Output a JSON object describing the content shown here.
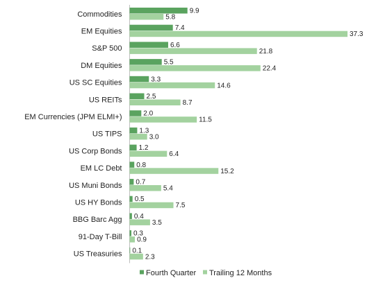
{
  "chart_data": {
    "type": "bar",
    "orientation": "horizontal",
    "categories": [
      "Commodities",
      "EM Equities",
      "S&P 500",
      "DM Equities",
      "US SC Equities",
      "US REITs",
      "EM Currencies (JPM ELMI+)",
      "US TIPS",
      "US Corp Bonds",
      "EM LC Debt",
      "US Muni Bonds",
      "US HY Bonds",
      "BBG Barc Agg",
      "91-Day T-Bill",
      "US Treasuries"
    ],
    "series": [
      {
        "name": "Fourth Quarter",
        "color": "#5aa35f",
        "values": [
          9.9,
          7.4,
          6.6,
          5.5,
          3.3,
          2.5,
          2.0,
          1.3,
          1.2,
          0.8,
          0.7,
          0.5,
          0.4,
          0.3,
          0.1
        ],
        "labels": [
          "9.9",
          "7.4",
          "6.6",
          "5.5",
          "3.3",
          "2.5",
          "2.0",
          "1.3",
          "1.2",
          "0.8",
          "0.7",
          "0.5",
          "0.4",
          "0.3",
          "0.1"
        ]
      },
      {
        "name": "Trailing 12 Months",
        "color": "#a3d29f",
        "values": [
          5.8,
          37.3,
          21.8,
          22.4,
          14.6,
          8.7,
          11.5,
          3.0,
          6.4,
          15.2,
          5.4,
          7.5,
          3.5,
          0.9,
          2.3
        ],
        "labels": [
          "5.8",
          "37.3",
          "21.8",
          "22.4",
          "14.6",
          "8.7",
          "11.5",
          "3.0",
          "6.4",
          "15.2",
          "5.4",
          "7.5",
          "3.5",
          "0.9",
          "2.3"
        ]
      }
    ],
    "xlim": [
      0,
      38
    ],
    "grid": false,
    "legend_position": "bottom",
    "axis_color": "#bfbfbf"
  }
}
